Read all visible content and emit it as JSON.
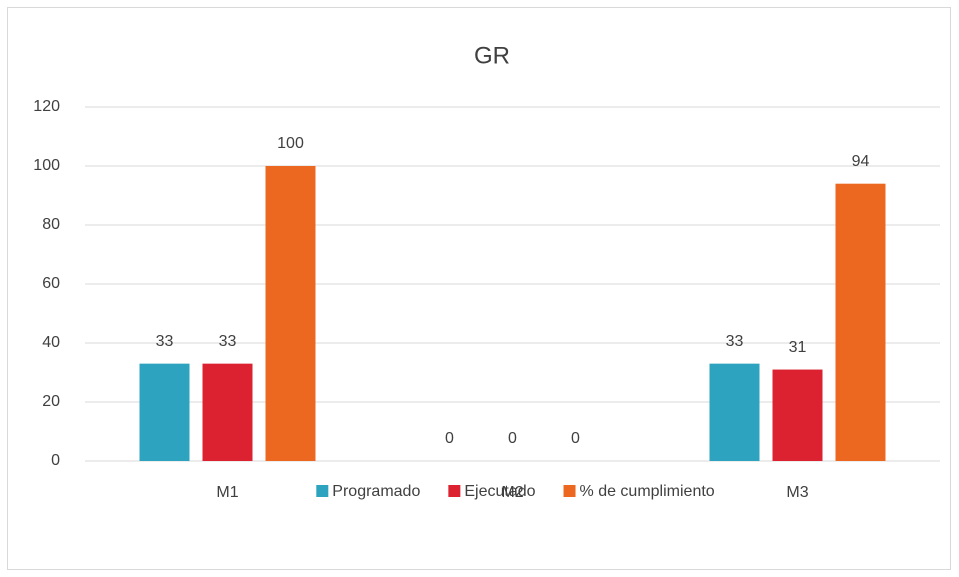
{
  "chart_data": {
    "type": "bar",
    "title": "GR",
    "categories": [
      "M1",
      "M2",
      "M3"
    ],
    "series": [
      {
        "name": "Programado",
        "color": "#2ea3bf",
        "values": [
          33,
          0,
          33
        ]
      },
      {
        "name": "Ejecutado",
        "color": "#dc2230",
        "values": [
          33,
          0,
          31
        ]
      },
      {
        "name": "% de cumplimiento",
        "color": "#ec671f",
        "values": [
          100,
          0,
          94
        ]
      }
    ],
    "ylim": [
      0,
      120
    ],
    "yticks": [
      0,
      20,
      40,
      60,
      80,
      100,
      120
    ],
    "grid": true,
    "legend": "bottom",
    "data_labels": true
  }
}
